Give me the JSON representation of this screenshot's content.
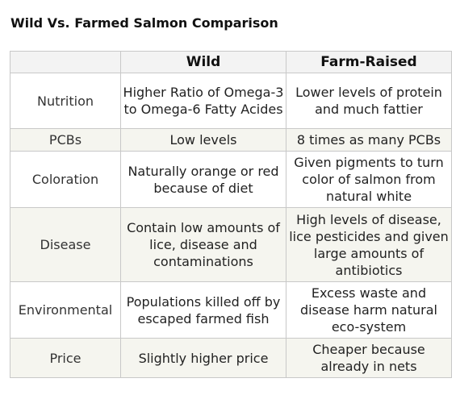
{
  "title": "Wild Vs. Farmed Salmon Comparison",
  "table": {
    "headers": [
      "",
      "Wild",
      "Farm-Raised"
    ],
    "rows": [
      {
        "label": "Nutrition",
        "wild": "Higher Ratio of Omega-3 to Omega-6 Fatty Acides",
        "farm": "Lower levels of protein and much fattier"
      },
      {
        "label": "PCBs",
        "wild": "Low levels",
        "farm": "8 times as many PCBs"
      },
      {
        "label": "Coloration",
        "wild": "Naturally orange or red because of diet",
        "farm": "Given pigments to turn color of salmon from natural white"
      },
      {
        "label": "Disease",
        "wild": "Contain low amounts of lice, disease and contaminations",
        "farm": "High levels of disease, lice pesticides and given large amounts of antibiotics"
      },
      {
        "label": "Environmental",
        "wild": "Populations killed off by escaped farmed fish",
        "farm": "Excess waste and disease harm natural eco-system"
      },
      {
        "label": "Price",
        "wild": "Slightly higher price",
        "farm": "Cheaper because already in nets"
      }
    ]
  },
  "colors": {
    "header_bg": "#f3f3f3",
    "alt_row_bg": "#f5f5ef",
    "border": "#c8c8c8"
  }
}
